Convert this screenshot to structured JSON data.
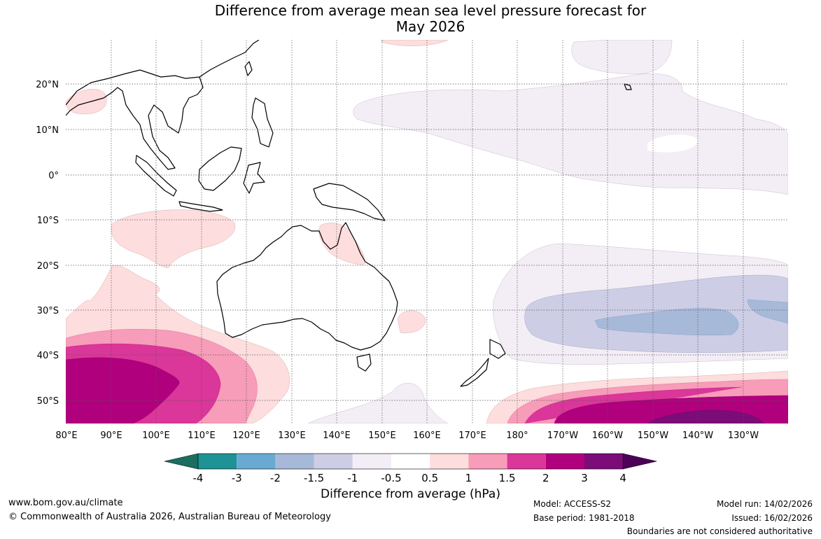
{
  "title": {
    "line1": "Difference from average mean sea level pressure forecast for",
    "line2": "May 2026"
  },
  "lat_labels": [
    "20°N",
    "10°N",
    "0°",
    "10°S",
    "20°S",
    "30°S",
    "40°S",
    "50°S"
  ],
  "lon_labels": [
    "80°E",
    "90°E",
    "100°E",
    "110°E",
    "120°E",
    "130°E",
    "140°E",
    "150°E",
    "160°E",
    "170°E",
    "180°",
    "170°W",
    "160°W",
    "150°W",
    "140°W",
    "130°W"
  ],
  "colorbar": {
    "title": "Difference from average (hPa)",
    "ticks": [
      "-4",
      "-3",
      "-2",
      "-1.5",
      "-1",
      "-0.5",
      "0.5",
      "1",
      "1.5",
      "2",
      "3",
      "4"
    ],
    "colors": [
      "#1a6f5e",
      "#1e9294",
      "#6aaad2",
      "#a7b9d8",
      "#cdcde6",
      "#f3edf5",
      "#ffffff",
      "#fddddd",
      "#f79cb9",
      "#db3699",
      "#b0007e",
      "#7c0c77",
      "#4c0058"
    ]
  },
  "footer": {
    "website": "www.bom.gov.au/climate",
    "copyright": "© Commonwealth of Australia 2026, Australian Bureau of Meteorology",
    "model": "Model: ACCESS-S2",
    "base_period": "Base period: 1981-2018",
    "model_run": "Model run: 14/02/2026",
    "issued": "Issued: 16/02/2026",
    "disclaimer": "Boundaries are not considered authoritative"
  }
}
